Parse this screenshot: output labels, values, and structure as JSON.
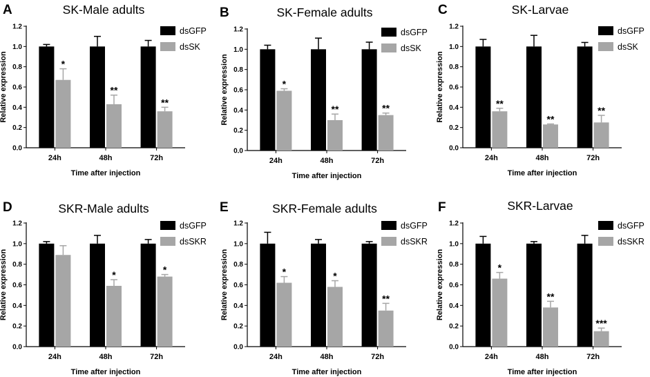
{
  "colors": {
    "dsGFP": "#000000",
    "knockdown": "#a6a6a6",
    "axis": "#000000"
  },
  "chart_data": [
    {
      "type": "bar",
      "panel": "A",
      "title": "SK-Male adults",
      "xlabel": "Time after injection",
      "ylabel": "Relative expression",
      "categories": [
        "24h",
        "48h",
        "72h"
      ],
      "ylim": [
        0,
        1.2
      ],
      "yticks": [
        "0.0",
        "0.2",
        "0.4",
        "0.6",
        "0.8",
        "1.0",
        "1.2"
      ],
      "series": [
        {
          "name": "dsGFP",
          "values": [
            1.0,
            1.0,
            1.0
          ],
          "errors": [
            0.02,
            0.1,
            0.06
          ]
        },
        {
          "name": "dsSK",
          "values": [
            0.67,
            0.43,
            0.36
          ],
          "errors": [
            0.11,
            0.09,
            0.04
          ]
        }
      ],
      "significance": [
        "*",
        "**",
        "**"
      ]
    },
    {
      "type": "bar",
      "panel": "B",
      "title": "SK-Female adults",
      "xlabel": "Time after injection",
      "ylabel": "Relative expression",
      "categories": [
        "24h",
        "48h",
        "72h"
      ],
      "ylim": [
        0,
        1.2
      ],
      "yticks": [
        "0.0",
        "0.2",
        "0.4",
        "0.6",
        "0.8",
        "1.0",
        "1.2"
      ],
      "series": [
        {
          "name": "dsGFP",
          "values": [
            1.0,
            1.0,
            1.0
          ],
          "errors": [
            0.04,
            0.11,
            0.07
          ]
        },
        {
          "name": "dsSK",
          "values": [
            0.59,
            0.3,
            0.35
          ],
          "errors": [
            0.02,
            0.06,
            0.02
          ]
        }
      ],
      "significance": [
        "*",
        "**",
        "**"
      ]
    },
    {
      "type": "bar",
      "panel": "C",
      "title": "SK-Larvae",
      "xlabel": "Time after injection",
      "ylabel": "Relative expression",
      "categories": [
        "24h",
        "48h",
        "72h"
      ],
      "ylim": [
        0,
        1.2
      ],
      "yticks": [
        "0.0",
        "0.2",
        "0.4",
        "0.6",
        "0.8",
        "1.0",
        "1.2"
      ],
      "series": [
        {
          "name": "dsGFP",
          "values": [
            1.0,
            1.0,
            1.0
          ],
          "errors": [
            0.07,
            0.11,
            0.04
          ]
        },
        {
          "name": "dsSK",
          "values": [
            0.36,
            0.23,
            0.25
          ],
          "errors": [
            0.03,
            0.005,
            0.07
          ]
        }
      ],
      "significance": [
        "**",
        "**",
        "**"
      ]
    },
    {
      "type": "bar",
      "panel": "D",
      "title": "SKR-Male adults",
      "xlabel": "Time after injection",
      "ylabel": "Relative expression",
      "categories": [
        "24h",
        "48h",
        "72h"
      ],
      "ylim": [
        0,
        1.2
      ],
      "yticks": [
        "0.0",
        "0.2",
        "0.4",
        "0.6",
        "0.8",
        "1.0",
        "1.2"
      ],
      "series": [
        {
          "name": "dsGFP",
          "values": [
            1.0,
            1.0,
            1.0
          ],
          "errors": [
            0.02,
            0.08,
            0.04
          ]
        },
        {
          "name": "dsSKR",
          "values": [
            0.89,
            0.59,
            0.68
          ],
          "errors": [
            0.09,
            0.06,
            0.02
          ]
        }
      ],
      "significance": [
        "",
        "*",
        "*"
      ]
    },
    {
      "type": "bar",
      "panel": "E",
      "title": "SKR-Female adults",
      "xlabel": "Time after injection",
      "ylabel": "Relative expression",
      "categories": [
        "24h",
        "48h",
        "72h"
      ],
      "ylim": [
        0,
        1.2
      ],
      "yticks": [
        "0.0",
        "0.2",
        "0.4",
        "0.6",
        "0.8",
        "1.0",
        "1.2"
      ],
      "series": [
        {
          "name": "dsGFP",
          "values": [
            1.0,
            1.0,
            1.0
          ],
          "errors": [
            0.11,
            0.04,
            0.02
          ]
        },
        {
          "name": "dsSKR",
          "values": [
            0.62,
            0.58,
            0.35
          ],
          "errors": [
            0.06,
            0.06,
            0.07
          ]
        }
      ],
      "significance": [
        "*",
        "*",
        "**"
      ]
    },
    {
      "type": "bar",
      "panel": "F",
      "title": "SKR-Larvae",
      "xlabel": "Time after injection",
      "ylabel": "Relative expression",
      "categories": [
        "24h",
        "48h",
        "72h"
      ],
      "ylim": [
        0,
        1.2
      ],
      "yticks": [
        "0.0",
        "0.2",
        "0.4",
        "0.6",
        "0.8",
        "1.0",
        "1.2"
      ],
      "series": [
        {
          "name": "dsGFP",
          "values": [
            1.0,
            1.0,
            1.0
          ],
          "errors": [
            0.07,
            0.02,
            0.08
          ]
        },
        {
          "name": "dsSKR",
          "values": [
            0.66,
            0.38,
            0.15
          ],
          "errors": [
            0.06,
            0.06,
            0.03
          ]
        }
      ],
      "significance": [
        "*",
        "**",
        "***"
      ]
    }
  ]
}
